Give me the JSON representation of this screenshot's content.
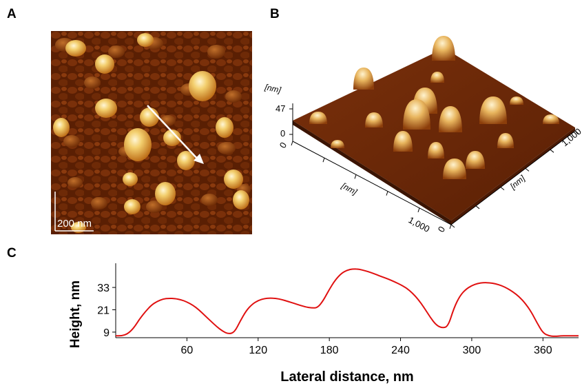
{
  "panels": {
    "a_label": "A",
    "b_label": "B",
    "c_label": "C"
  },
  "panel_a": {
    "scale_bar": "200 nm",
    "colors": {
      "dark": "#3a1200",
      "mid": "#9b3f0d",
      "light": "#f3cf6e",
      "highlight": "#fff6d6",
      "arrow": "#ffffff"
    }
  },
  "panel_b": {
    "z_unit": "[nm]",
    "z_ticks": [
      "47",
      "0"
    ],
    "origin_label": "0",
    "x_unit": "[nm]",
    "y_unit": "[nm]",
    "x_end": "1,000",
    "y_end": "1,000",
    "x_start": "0",
    "y_start": "0"
  },
  "chart_data": {
    "type": "line",
    "title": "",
    "xlabel": "Lateral distance, nm",
    "ylabel": "Height, nm",
    "xlim": [
      0,
      390
    ],
    "ylim": [
      6,
      46
    ],
    "xticks": [
      60,
      120,
      180,
      240,
      300,
      360
    ],
    "yticks": [
      9,
      21,
      33
    ],
    "grid": false,
    "series": [
      {
        "color": "#e01010",
        "x": [
          0,
          5,
          10,
          15,
          20,
          25,
          30,
          35,
          40,
          45,
          50,
          55,
          60,
          65,
          70,
          75,
          80,
          85,
          90,
          95,
          100,
          105,
          110,
          115,
          120,
          125,
          130,
          135,
          140,
          145,
          150,
          155,
          160,
          165,
          170,
          175,
          180,
          185,
          190,
          195,
          200,
          205,
          210,
          215,
          220,
          225,
          230,
          235,
          240,
          245,
          250,
          255,
          260,
          265,
          270,
          275,
          280,
          285,
          290,
          295,
          300,
          305,
          310,
          315,
          320,
          325,
          330,
          335,
          340,
          345,
          350,
          355,
          360,
          365,
          370,
          375,
          380,
          385,
          390
        ],
        "y": [
          7,
          7,
          8,
          11,
          16,
          20,
          23.5,
          25.5,
          26.8,
          27.2,
          27,
          26.4,
          25.2,
          23.5,
          21,
          18,
          15,
          12,
          9.5,
          8,
          8.8,
          15,
          20.5,
          24,
          26,
          27,
          27.3,
          27.1,
          26.5,
          25.5,
          24.5,
          23.5,
          22.5,
          22,
          22,
          26,
          32,
          37,
          40.5,
          42.3,
          43,
          42.8,
          42,
          41,
          39.8,
          38.6,
          37.4,
          36,
          34.5,
          32.7,
          30,
          26.5,
          22,
          17,
          12.8,
          11.2,
          12,
          22,
          28.5,
          32,
          34,
          35.2,
          35.6,
          35.5,
          35,
          34,
          32.5,
          30.5,
          28,
          24.5,
          20,
          14,
          8.5,
          7,
          6.7,
          7,
          7,
          7,
          7
        ]
      }
    ]
  }
}
